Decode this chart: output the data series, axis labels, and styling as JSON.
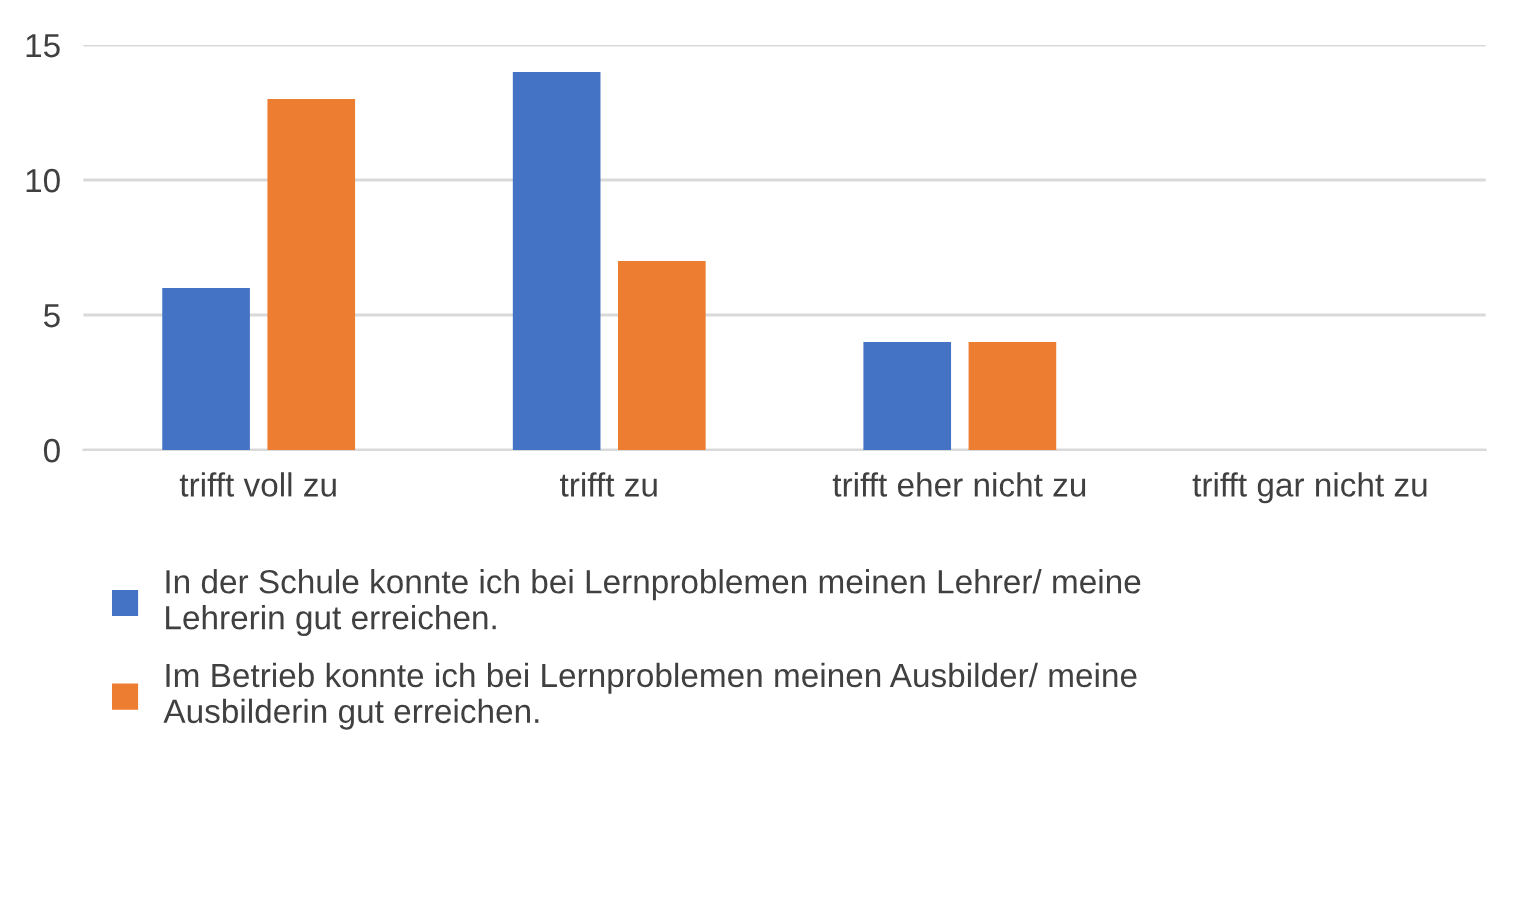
{
  "chart_data": {
    "type": "bar",
    "categories": [
      "trifft voll zu",
      "trifft zu",
      "trifft eher nicht zu",
      "trifft gar nicht zu"
    ],
    "series": [
      {
        "name": "In der Schule konnte ich bei Lernproblemen meinen Lehrer/ meine\nLehrerin gut erreichen.",
        "color": "#4472c4",
        "values": [
          6,
          14,
          4,
          0
        ]
      },
      {
        "name": "Im Betrieb konnte ich bei Lernproblemen meinen Ausbilder/ meine\nAusbilderin gut erreichen.",
        "color": "#ed7d31",
        "values": [
          13,
          7,
          4,
          0
        ]
      }
    ],
    "ylim": [
      0,
      15
    ],
    "yticks": [
      0,
      5,
      10,
      15
    ],
    "grid": "y",
    "legend": "bottom"
  }
}
